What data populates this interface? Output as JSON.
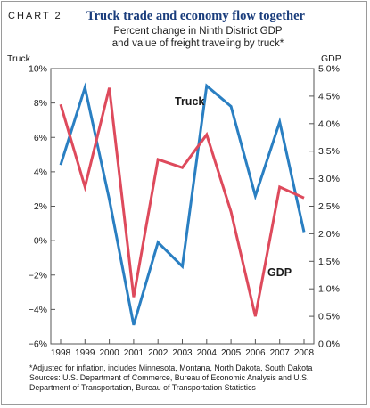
{
  "header": {
    "chart_label": "CHART 2",
    "title": "Truck trade and economy flow together",
    "subtitle_line1": "Percent change in Ninth District GDP",
    "subtitle_line2": "and value of freight traveling by truck*"
  },
  "footer": {
    "footnote": "*Adjusted for inflation, includes Minnesota, Montana, North Dakota, South Dakota",
    "sources_line1": "Sources: U.S. Department of Commerce, Bureau of Economic Analysis and U.S.",
    "sources_line2": "Department of Transportation, Bureau of Transportation Statistics"
  },
  "colors": {
    "truck": "#2a7fc2",
    "gdp": "#de4a5c",
    "axis": "#555555"
  },
  "chart_data": {
    "type": "line",
    "x": [
      "1998",
      "1999",
      "2000",
      "2001",
      "2002",
      "2003",
      "2004",
      "2005",
      "2006",
      "2007",
      "2008"
    ],
    "left_axis": {
      "label": "Truck",
      "ylim": [
        -6,
        10
      ],
      "ticks": [
        10,
        8,
        6,
        4,
        2,
        0,
        -2,
        -4,
        -6
      ],
      "tick_labels": [
        "10%",
        "8%",
        "6%",
        "4%",
        "2%",
        "0%",
        "−2%",
        "−4%",
        "−6%"
      ]
    },
    "right_axis": {
      "label": "GDP",
      "ylim": [
        0,
        5
      ],
      "ticks": [
        5,
        4.5,
        4,
        3.5,
        3,
        2.5,
        2,
        1.5,
        1,
        0.5,
        0
      ],
      "tick_labels": [
        "5.0%",
        "4.5%",
        "4.0%",
        "3.5%",
        "3.0%",
        "2.5%",
        "2.0%",
        "1.5%",
        "1.0%",
        "0.5%",
        "0.0%"
      ]
    },
    "series": [
      {
        "name": "Truck",
        "axis": "left",
        "values": [
          4.4,
          8.9,
          2.4,
          -4.9,
          -0.1,
          -1.5,
          9.0,
          7.8,
          2.6,
          6.9,
          0.5
        ]
      },
      {
        "name": "GDP",
        "axis": "right",
        "values": [
          4.35,
          2.85,
          4.65,
          0.85,
          3.35,
          3.2,
          3.8,
          2.4,
          0.5,
          2.85,
          2.65
        ]
      }
    ],
    "annotations": [
      {
        "text": "Truck",
        "series": "Truck"
      },
      {
        "text": "GDP",
        "series": "GDP"
      }
    ]
  }
}
